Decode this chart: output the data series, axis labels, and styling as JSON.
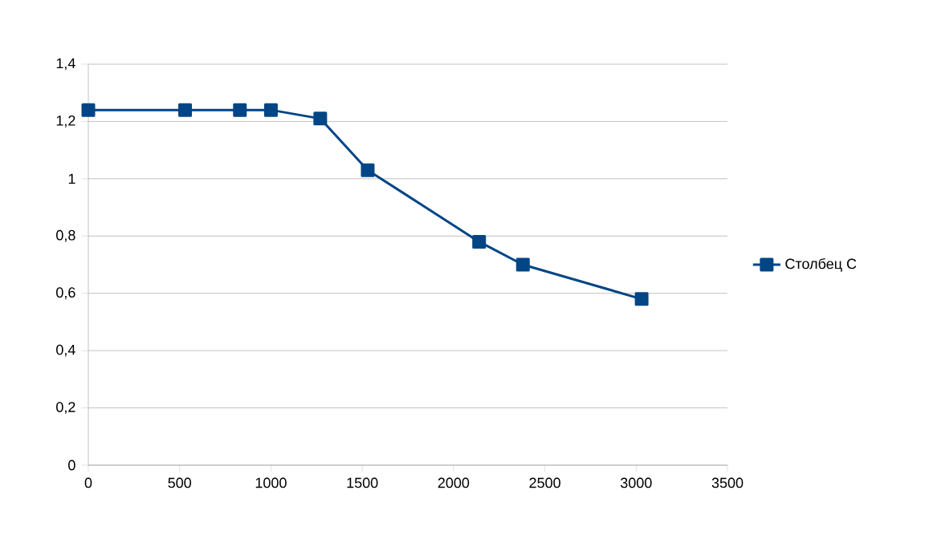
{
  "chart_data": {
    "type": "line",
    "x": [
      0,
      530,
      830,
      1000,
      1270,
      1530,
      2140,
      2380,
      3030
    ],
    "series": [
      {
        "name": "Столбец C",
        "color": "#004586",
        "values": [
          1.24,
          1.24,
          1.24,
          1.24,
          1.21,
          1.03,
          0.78,
          0.7,
          0.58
        ]
      }
    ],
    "xlim": [
      0,
      3500
    ],
    "xticks": [
      0,
      500,
      1000,
      1500,
      2000,
      2500,
      3000,
      3500
    ],
    "ylim": [
      0,
      1.4
    ],
    "yticks": [
      0,
      {
        "value": 0.2,
        "label": "0,2"
      },
      {
        "value": 0.4,
        "label": "0,4"
      },
      {
        "value": 0.6,
        "label": "0,6"
      },
      {
        "value": 0.8,
        "label": "0,8"
      },
      1,
      {
        "value": 1.2,
        "label": "1,2"
      },
      {
        "value": 1.4,
        "label": "1,4"
      }
    ],
    "grid": "y",
    "legend": "right",
    "marker": "square",
    "line_style": "solid"
  }
}
